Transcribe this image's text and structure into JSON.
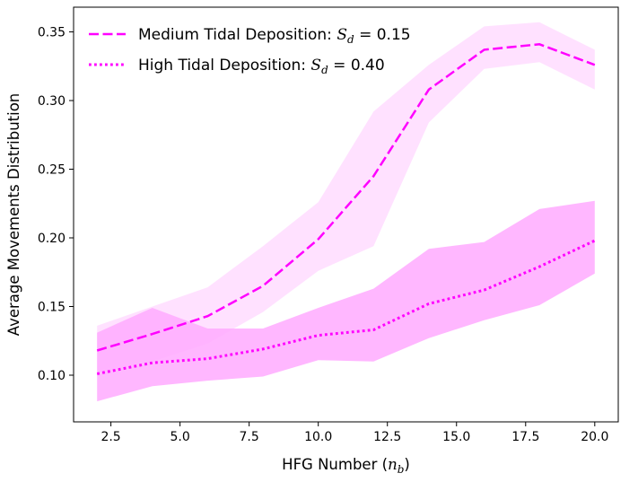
{
  "chart_data": {
    "type": "line",
    "xlabel": "HFG Number",
    "xlabel_symbol": "n",
    "xlabel_symbol_sub": "b",
    "ylabel": "Average Movements Distribution",
    "xlim": [
      1.15,
      20.85
    ],
    "ylim": [
      0.066,
      0.368
    ],
    "x_ticks": [
      2.5,
      5.0,
      7.5,
      10.0,
      12.5,
      15.0,
      17.5,
      20.0
    ],
    "x_tick_labels": [
      "2.5",
      "5.0",
      "7.5",
      "10.0",
      "12.5",
      "15.0",
      "17.5",
      "20.0"
    ],
    "y_ticks": [
      0.1,
      0.15,
      0.2,
      0.25,
      0.3,
      0.35
    ],
    "y_tick_labels": [
      "0.10",
      "0.15",
      "0.20",
      "0.25",
      "0.30",
      "0.35"
    ],
    "grid": false,
    "legend_position": "top-left",
    "x": [
      2,
      4,
      6,
      8,
      10,
      12,
      14,
      16,
      18,
      20
    ],
    "series": [
      {
        "name": "Medium Tidal Deposition: ",
        "name_math": "S",
        "name_math_sub": "d",
        "name_value": " = 0.15",
        "style": "dashed",
        "color": "#ff00ff",
        "band_color": "#ffdcff",
        "values": [
          0.118,
          0.13,
          0.143,
          0.165,
          0.199,
          0.245,
          0.308,
          0.337,
          0.341,
          0.326
        ],
        "upper": [
          0.136,
          0.15,
          0.164,
          0.194,
          0.226,
          0.292,
          0.326,
          0.354,
          0.357,
          0.337
        ],
        "lower": [
          0.102,
          0.11,
          0.123,
          0.146,
          0.176,
          0.194,
          0.284,
          0.323,
          0.328,
          0.308
        ]
      },
      {
        "name": "High Tidal Deposition: ",
        "name_math": "S",
        "name_math_sub": "d",
        "name_value": " = 0.40",
        "style": "dotted",
        "color": "#ff00ff",
        "band_color": "#ffaaff",
        "values": [
          0.101,
          0.109,
          0.112,
          0.119,
          0.129,
          0.133,
          0.152,
          0.162,
          0.179,
          0.198
        ],
        "upper": [
          0.131,
          0.149,
          0.134,
          0.134,
          0.149,
          0.163,
          0.192,
          0.197,
          0.221,
          0.227
        ],
        "lower": [
          0.081,
          0.092,
          0.096,
          0.099,
          0.111,
          0.11,
          0.127,
          0.14,
          0.151,
          0.174
        ]
      }
    ]
  }
}
